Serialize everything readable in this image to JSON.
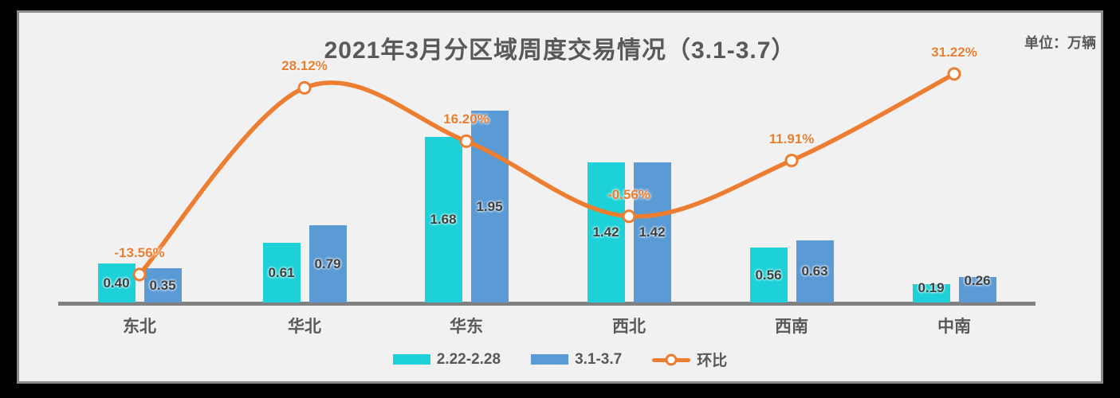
{
  "title": "2021年3月分区域周度交易情况（3.1-3.7）",
  "unit_label": "单位：万辆",
  "legend": {
    "series1_label": "2.22-2.28",
    "series2_label": "3.1-3.7",
    "line_label": "环比"
  },
  "colors": {
    "series1_bar": "#1cd1d7",
    "series2_bar": "#5b9bd5",
    "line": "#ed7d31",
    "axis_line": "#808080",
    "text": "#595959",
    "bar_label_text": "#3f3f3f",
    "panel_background": "#f1f1f2",
    "panel_border": "#8b8b8b",
    "frame_background": "#000000"
  },
  "chart_data": {
    "type": "bar",
    "subtype": "grouped-bar-with-smoothed-line-combo",
    "title": "2021年3月分区域周度交易情况（3.1-3.7）",
    "unit": "万辆",
    "categories": [
      "东北",
      "华北",
      "华东",
      "西北",
      "西南",
      "中南"
    ],
    "series": [
      {
        "name": "2.22-2.28",
        "type": "bar",
        "color": "#1cd1d7",
        "values": [
          0.4,
          0.61,
          1.68,
          1.42,
          0.56,
          0.19
        ],
        "labels": [
          "0.40",
          "0.61",
          "1.68",
          "1.42",
          "0.56",
          "0.19"
        ]
      },
      {
        "name": "3.1-3.7",
        "type": "bar",
        "color": "#5b9bd5",
        "values": [
          0.35,
          0.79,
          1.95,
          1.42,
          0.63,
          0.26
        ],
        "labels": [
          "0.35",
          "0.79",
          "1.95",
          "1.42",
          "0.63",
          "0.26"
        ]
      },
      {
        "name": "环比",
        "type": "line",
        "color": "#ed7d31",
        "marker": "circle-white-fill",
        "smoothed": true,
        "values_percent": [
          -13.56,
          28.12,
          16.2,
          -0.56,
          11.91,
          31.22
        ],
        "labels": [
          "-13.56%",
          "28.12%",
          "16.20%",
          "-0.56%",
          "11.91%",
          "31.22%"
        ]
      }
    ],
    "bar_axis_range": [
      0,
      2.4
    ],
    "line_axis_range_percent": [
      -35,
      40
    ],
    "gridlines": false,
    "y_axis_visible": false,
    "legend_position": "bottom"
  }
}
